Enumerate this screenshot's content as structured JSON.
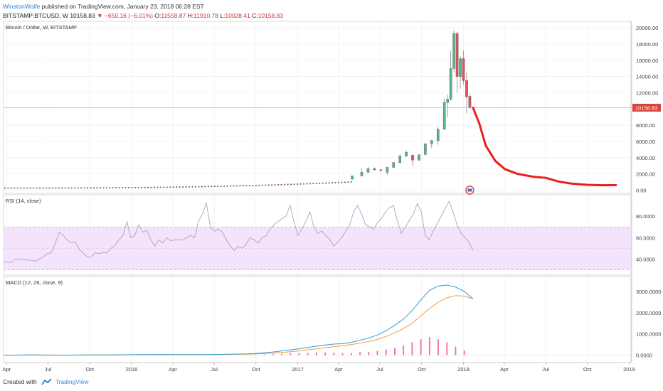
{
  "header": {
    "author": "WinstonWolfe",
    "published_text": "published on TradingView.com, January 23, 2018 06:28 EST",
    "symbol": "BITSTAMP:BTCUSD, W",
    "last": "10158.83",
    "change_arrow": "▼",
    "change": "−650.16 (−6.01%)",
    "o_label": "O:",
    "o_value": "11558.87",
    "h_label": "H:",
    "h_value": "11910.78",
    "l_label": "L:",
    "l_value": "10028.41",
    "c_label": "C:",
    "c_value": "10158.83"
  },
  "footer": {
    "created_with": "Created with",
    "brand": "TradingView"
  },
  "colors": {
    "up": "#53b987",
    "down": "#eb4d5c",
    "projection": "#e8201c",
    "rsi_line": "#b89cc3",
    "rsi_band": "#f3e3fb",
    "macd": "#2e9bd6",
    "signal": "#f39c35",
    "histogram": "#f06d9f",
    "price_line": "#f4a59b"
  },
  "chart_data": [
    {
      "type": "candlestick",
      "title": "Bitcoin / Dollar, W, BITSTAMP",
      "ylim": [
        -400,
        20800
      ],
      "y_ticks": [
        "20000.00",
        "18000.00",
        "16000.00",
        "14000.00",
        "12000.00",
        "8000.00",
        "6000.00",
        "4000.00",
        "2000.00",
        "0.00"
      ],
      "y_tick_values": [
        20000,
        18000,
        16000,
        14000,
        12000,
        8000,
        6000,
        4000,
        2000,
        0
      ],
      "last_price_label": "10158.83",
      "last_price": 10158.83,
      "candles_dates": [
        "2017-06",
        "2017-07",
        "2017-08",
        "2017-09",
        "2017-10",
        "2017-11",
        "2017-12",
        "2018-01"
      ],
      "candles": [
        {
          "t": "2017-05-01",
          "o": 1350,
          "h": 1800,
          "l": 1300,
          "c": 1750
        },
        {
          "t": "2017-05-22",
          "o": 1750,
          "h": 2700,
          "l": 1700,
          "c": 2200
        },
        {
          "t": "2017-06-05",
          "o": 2200,
          "h": 2900,
          "l": 2100,
          "c": 2650
        },
        {
          "t": "2017-06-19",
          "o": 2650,
          "h": 2800,
          "l": 2400,
          "c": 2500
        },
        {
          "t": "2017-07-03",
          "o": 2500,
          "h": 2650,
          "l": 2300,
          "c": 2450
        },
        {
          "t": "2017-07-17",
          "o": 2200,
          "h": 2900,
          "l": 1900,
          "c": 2800
        },
        {
          "t": "2017-07-31",
          "o": 2800,
          "h": 3450,
          "l": 2700,
          "c": 3400
        },
        {
          "t": "2017-08-14",
          "o": 3400,
          "h": 4400,
          "l": 3300,
          "c": 4200
        },
        {
          "t": "2017-08-28",
          "o": 4200,
          "h": 4900,
          "l": 4100,
          "c": 4650
        },
        {
          "t": "2017-09-11",
          "o": 4300,
          "h": 4400,
          "l": 3000,
          "c": 3700
        },
        {
          "t": "2017-09-25",
          "o": 3700,
          "h": 4400,
          "l": 3600,
          "c": 4350
        },
        {
          "t": "2017-10-09",
          "o": 4400,
          "h": 5800,
          "l": 4300,
          "c": 5700
        },
        {
          "t": "2017-10-23",
          "o": 5700,
          "h": 6200,
          "l": 5200,
          "c": 6100
        },
        {
          "t": "2017-11-06",
          "o": 6100,
          "h": 7800,
          "l": 5600,
          "c": 7500
        },
        {
          "t": "2017-11-20",
          "o": 7500,
          "h": 11300,
          "l": 7400,
          "c": 10800
        },
        {
          "t": "2017-11-27",
          "o": 10800,
          "h": 11800,
          "l": 9000,
          "c": 11200
        },
        {
          "t": "2017-12-04",
          "o": 11200,
          "h": 17200,
          "l": 11000,
          "c": 15000
        },
        {
          "t": "2017-12-11",
          "o": 15000,
          "h": 19700,
          "l": 14500,
          "c": 19300
        },
        {
          "t": "2017-12-18",
          "o": 19300,
          "h": 19500,
          "l": 12000,
          "c": 14000
        },
        {
          "t": "2017-12-25",
          "o": 14000,
          "h": 16500,
          "l": 12500,
          "c": 16200
        },
        {
          "t": "2018-01-01",
          "o": 16200,
          "h": 17200,
          "l": 13000,
          "c": 13500
        },
        {
          "t": "2018-01-08",
          "o": 13500,
          "h": 14500,
          "l": 9500,
          "c": 11500
        },
        {
          "t": "2018-01-15",
          "o": 11558.87,
          "h": 11910.78,
          "l": 10028.41,
          "c": 10158.83
        }
      ],
      "projection": [
        {
          "t": "2018-01-22",
          "y": 10158
        },
        {
          "t": "2018-02-05",
          "y": 8200
        },
        {
          "t": "2018-02-19",
          "y": 5500
        },
        {
          "t": "2018-03-12",
          "y": 3600
        },
        {
          "t": "2018-04-02",
          "y": 2600
        },
        {
          "t": "2018-04-30",
          "y": 2000
        },
        {
          "t": "2018-06-04",
          "y": 1650
        },
        {
          "t": "2018-07-02",
          "y": 1500
        },
        {
          "t": "2018-07-30",
          "y": 1050
        },
        {
          "t": "2018-08-27",
          "y": 800
        },
        {
          "t": "2018-10-01",
          "y": 650
        },
        {
          "t": "2018-11-05",
          "y": 600
        },
        {
          "t": "2018-12-03",
          "y": 620
        }
      ]
    },
    {
      "type": "line",
      "title": "RSI (14, close)",
      "ylim": [
        25,
        100
      ],
      "band": [
        30,
        70
      ],
      "midline": 50,
      "y_ticks": [
        "80.0000",
        "60.0000",
        "40.0000"
      ],
      "y_tick_values": [
        80,
        60,
        40
      ],
      "series": [
        {
          "values": [
            38,
            37,
            37,
            40,
            40,
            40,
            39,
            39,
            38,
            40,
            42,
            45,
            46,
            55,
            65,
            62,
            58,
            55,
            56,
            49,
            46,
            42,
            42,
            46,
            45,
            46,
            46,
            50,
            53,
            58,
            62,
            75,
            60,
            62,
            72,
            65,
            67,
            58,
            52,
            58,
            55,
            60,
            57,
            58,
            58,
            58,
            60,
            62,
            60,
            75,
            82,
            92,
            70,
            66,
            68,
            65,
            58,
            52,
            48,
            52,
            50,
            54,
            60,
            58,
            55,
            60,
            62,
            68,
            72,
            75,
            78,
            80,
            90,
            75,
            62,
            68,
            75,
            84,
            70,
            64,
            66,
            62,
            58,
            52,
            56,
            60,
            66,
            72,
            84,
            90,
            82,
            72,
            70,
            68,
            74,
            78,
            84,
            88,
            90,
            76,
            64,
            70,
            76,
            82,
            92,
            84,
            62,
            58,
            66,
            73,
            80,
            87,
            94,
            84,
            72,
            64,
            60,
            56,
            48
          ]
        }
      ]
    },
    {
      "type": "line",
      "title": "MACD (12, 26, close, 9)",
      "ylim": [
        -350,
        3700
      ],
      "y_ticks": [
        "3000.0000",
        "2000.0000",
        "1000.0000",
        "0.0000"
      ],
      "y_tick_values": [
        3000,
        2000,
        1000,
        0
      ],
      "series": [
        {
          "name": "MACD",
          "values": [
            0,
            2,
            5,
            8,
            6,
            3,
            2,
            3,
            4,
            6,
            8,
            10,
            12,
            15,
            18,
            20,
            24,
            28,
            30,
            28,
            25,
            24,
            26,
            28,
            32,
            36,
            40,
            50,
            60,
            80,
            110,
            150,
            200,
            250,
            300,
            360,
            420,
            480,
            520,
            540,
            600,
            700,
            800,
            950,
            1150,
            1400,
            1700,
            2100,
            2600,
            3050,
            3250,
            3300,
            3200,
            3000,
            2650
          ]
        },
        {
          "name": "Signal",
          "values": [
            0,
            1,
            3,
            5,
            6,
            5,
            4,
            3,
            3,
            4,
            6,
            8,
            10,
            12,
            14,
            17,
            20,
            23,
            26,
            27,
            27,
            26,
            26,
            27,
            29,
            32,
            35,
            40,
            47,
            58,
            75,
            98,
            128,
            160,
            200,
            250,
            300,
            350,
            400,
            440,
            500,
            560,
            640,
            740,
            880,
            1050,
            1250,
            1500,
            1850,
            2200,
            2500,
            2700,
            2800,
            2780,
            2650
          ]
        }
      ],
      "histogram": [
        0,
        1,
        2,
        3,
        0,
        -1,
        -2,
        0,
        1,
        2,
        2,
        2,
        2,
        3,
        4,
        3,
        4,
        5,
        4,
        1,
        -2,
        -2,
        0,
        1,
        3,
        4,
        5,
        10,
        13,
        22,
        35,
        52,
        72,
        90,
        100,
        110,
        120,
        130,
        120,
        100,
        100,
        140,
        160,
        210,
        270,
        350,
        450,
        600,
        750,
        850,
        750,
        600,
        400,
        220,
        0
      ]
    },
    {
      "type": "axis",
      "x_ticks": [
        "Apr",
        "Jul",
        "Oct",
        "2016",
        "Apr",
        "Jul",
        "Oct",
        "2017",
        "Apr",
        "Jul",
        "Oct",
        "2018",
        "Apr",
        "Jul",
        "Oct",
        "2019"
      ],
      "x_tick_dates": [
        "2015-04-01",
        "2015-07-01",
        "2015-10-01",
        "2016-01-01",
        "2016-04-01",
        "2016-07-01",
        "2016-10-01",
        "2017-01-01",
        "2017-04-01",
        "2017-07-01",
        "2017-10-01",
        "2018-01-01",
        "2018-04-01",
        "2018-07-01",
        "2018-10-01",
        "2019-01-01"
      ]
    }
  ]
}
